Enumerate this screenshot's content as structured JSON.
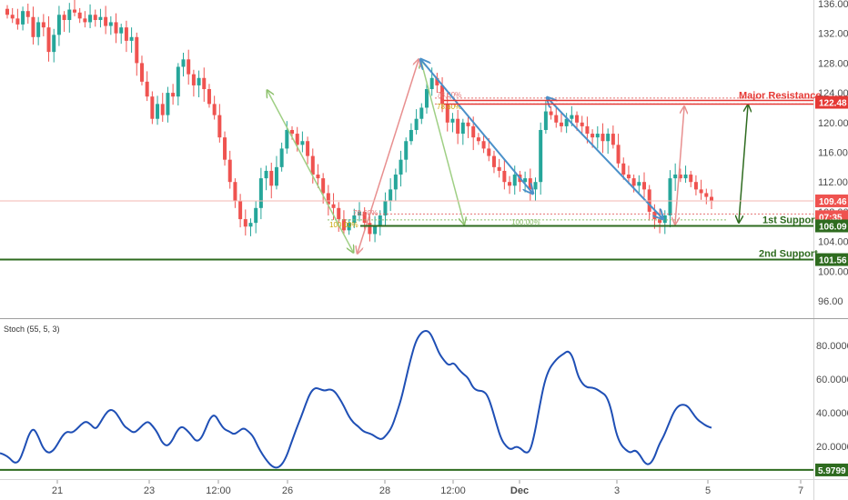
{
  "chart_data": [
    {
      "type": "candlestick",
      "y_axis_ticks": [
        "136.00",
        "132.00",
        "128.00",
        "124.00",
        "120.00",
        "116.00",
        "112.00",
        "108.00",
        "104.00",
        "100.00",
        "96.00"
      ],
      "ylim": [
        93,
        137
      ],
      "x_axis_ticks": [
        "21",
        "23",
        "12:00",
        "26",
        "28",
        "12:00",
        "Dec",
        "3",
        "5",
        "7"
      ],
      "price_tags": [
        {
          "text": "122.48",
          "value": 122.48,
          "color": "#e53935"
        },
        {
          "text": "109.46",
          "value": 109.46,
          "color": "#ef5350"
        },
        {
          "text": "07:35",
          "value": 107.7,
          "color": "#ef5350"
        },
        {
          "text": "106.09",
          "value": 106.09,
          "color": "#2e6b1f"
        },
        {
          "text": "101.56",
          "value": 101.56,
          "color": "#2e6b1f"
        }
      ],
      "levels": [
        {
          "label": "Major Resistance",
          "value": 122.48,
          "color": "#e53935"
        },
        {
          "label": "1st Support",
          "value": 106.09,
          "color": "#2e6b1f"
        },
        {
          "label": "2nd Support",
          "value": 101.56,
          "color": "#2e6b1f"
        }
      ],
      "fib_labels": [
        {
          "text": "78.60%",
          "color": "#e57373"
        },
        {
          "text": "78.60%",
          "color": "#c9a400"
        },
        {
          "text": "100.00%",
          "color": "#c9a400"
        },
        {
          "text": "78.60%",
          "color": "#e57373"
        },
        {
          "text": "100.00%",
          "color": "#8bbf6a"
        }
      ],
      "close_series": [
        134.5,
        134.0,
        133.2,
        135.0,
        134.2,
        131.5,
        133.5,
        132.8,
        129.5,
        131.8,
        134.5,
        133.8,
        135.2,
        134.8,
        134.0,
        133.5,
        134.5,
        133.8,
        134.2,
        133.0,
        133.5,
        132.0,
        132.8,
        131.0,
        131.5,
        128.0,
        125.5,
        123.5,
        120.5,
        122.5,
        121.0,
        124.0,
        123.5,
        127.5,
        128.5,
        126.5,
        125.0,
        126.0,
        124.5,
        122.5,
        121.0,
        118.0,
        115.0,
        112.0,
        109.5,
        107.0,
        106.0,
        106.5,
        108.5,
        112.5,
        113.5,
        111.5,
        114.0,
        116.5,
        119.0,
        118.5,
        117.0,
        117.5,
        115.5,
        113.0,
        112.5,
        110.5,
        109.0,
        108.5,
        107.0,
        105.5,
        106.5,
        107.5,
        108.0,
        106.5,
        105.0,
        106.0,
        107.5,
        109.5,
        111.0,
        113.0,
        115.0,
        117.5,
        119.0,
        120.5,
        122.0,
        124.5,
        126.0,
        125.0,
        122.5,
        120.0,
        120.5,
        118.5,
        120.0,
        119.5,
        118.0,
        117.5,
        116.5,
        115.5,
        114.0,
        113.5,
        112.0,
        111.5,
        113.0,
        112.0,
        112.5,
        111.0,
        112.0,
        119.0,
        121.5,
        121.0,
        120.0,
        119.5,
        120.5,
        121.0,
        120.0,
        119.5,
        118.5,
        118.0,
        118.5,
        117.5,
        118.5,
        117.0,
        114.5,
        113.0,
        112.5,
        111.5,
        112.0,
        111.0,
        108.0,
        107.0,
        106.5,
        107.5,
        112.5,
        113.0,
        112.5,
        113.0,
        112.0,
        111.0,
        110.5,
        110.0,
        109.46
      ],
      "title": "",
      "xlabel": "",
      "ylabel": ""
    },
    {
      "type": "line",
      "title": "Stoch (55, 5, 3)",
      "y_axis_ticks": [
        "80.0000",
        "60.0000",
        "40.0000",
        "20.0000"
      ],
      "ylim": [
        0,
        100
      ],
      "baseline_tag": {
        "text": "5.9799",
        "value": 5.9799,
        "color": "#2e6b1f"
      },
      "series": [
        {
          "color": "#1f4fb5",
          "values": [
            16,
            15,
            13,
            10,
            11,
            18,
            27,
            31,
            26,
            19,
            16,
            17,
            21,
            26,
            29,
            28,
            30,
            33,
            35,
            33,
            30,
            34,
            39,
            42,
            41,
            37,
            32,
            30,
            28,
            30,
            33,
            35,
            32,
            28,
            22,
            20,
            23,
            29,
            32,
            30,
            27,
            23,
            24,
            30,
            37,
            39,
            34,
            30,
            29,
            27,
            29,
            31,
            29,
            26,
            20,
            15,
            11,
            8,
            7,
            9,
            14,
            22,
            30,
            37,
            45,
            52,
            55,
            54,
            53,
            54,
            53,
            49,
            44,
            38,
            34,
            32,
            29,
            28,
            27,
            25,
            24,
            27,
            31,
            39,
            48,
            60,
            72,
            82,
            87,
            89,
            88,
            82,
            75,
            71,
            68,
            70,
            66,
            63,
            61,
            55,
            53,
            53,
            51,
            43,
            33,
            24,
            20,
            18,
            20,
            19,
            16,
            17,
            28,
            44,
            58,
            66,
            70,
            73,
            75,
            77,
            73,
            62,
            57,
            55,
            55,
            54,
            52,
            50,
            42,
            28,
            21,
            18,
            16,
            18,
            15,
            10,
            9,
            13,
            21,
            26,
            33,
            40,
            44,
            45,
            44,
            40,
            36,
            34,
            32,
            31
          ]
        }
      ]
    }
  ]
}
